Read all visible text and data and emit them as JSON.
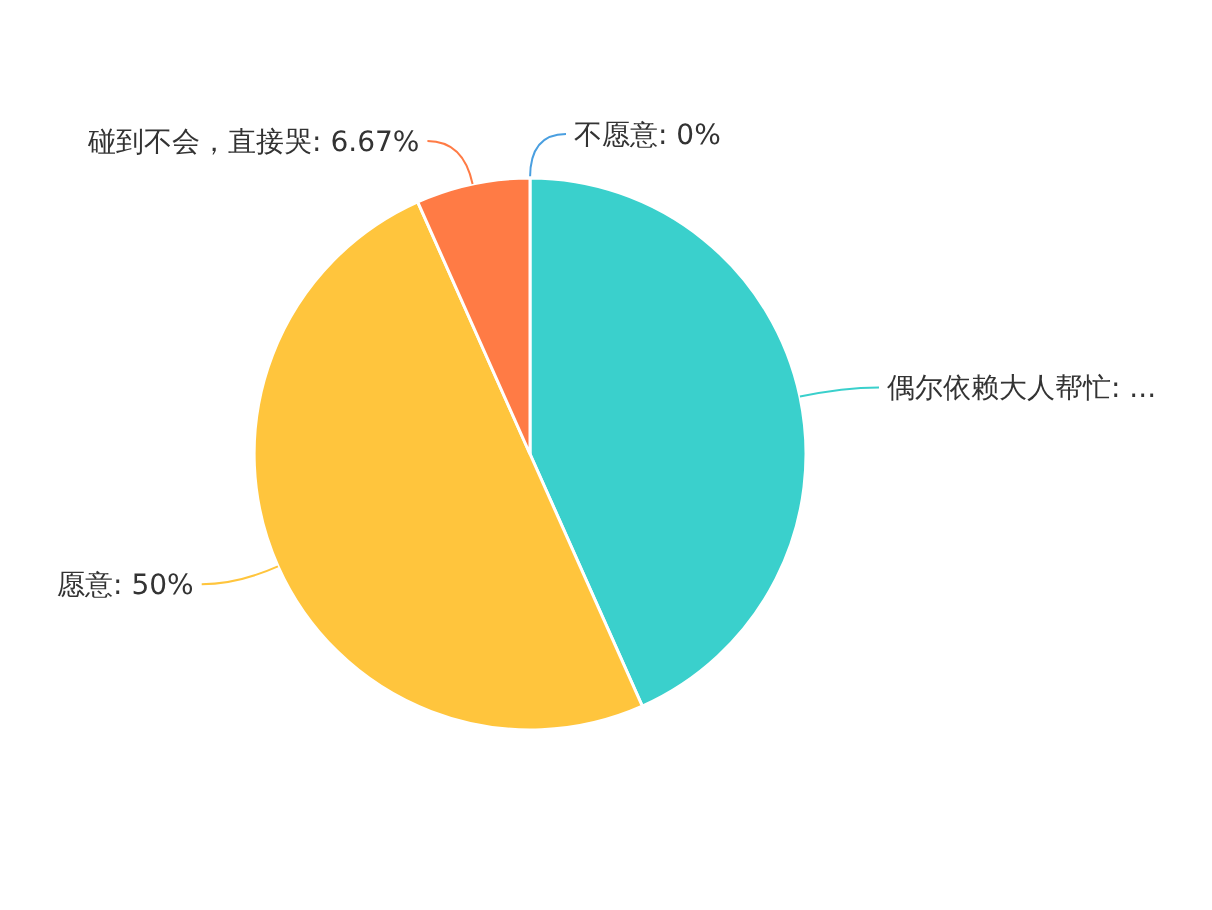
{
  "chart_data": {
    "type": "pie",
    "categories": [
      "不愿意",
      "偶尔依赖大人帮忙",
      "愿意",
      "碰到不会，直接哭"
    ],
    "values": [
      0,
      43.33,
      50,
      6.67
    ],
    "value_labels": [
      ": 0%",
      ": ...",
      ": 50%",
      ": 6.67%"
    ],
    "colors": [
      "#4a9fe0",
      "#3ad0cc",
      "#ffc53d",
      "#ff7b45"
    ]
  }
}
